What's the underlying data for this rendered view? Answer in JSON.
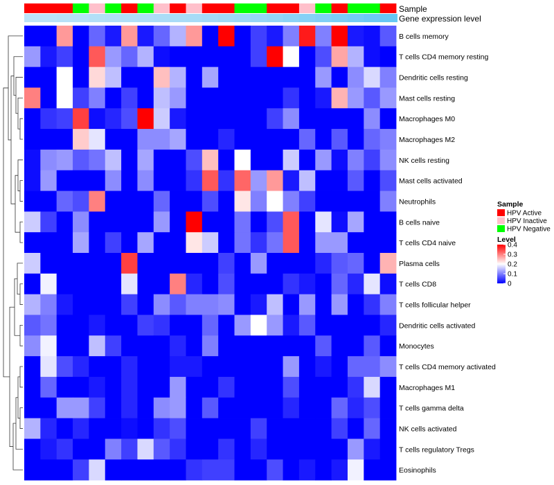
{
  "chart_data": {
    "type": "heatmap",
    "title": "",
    "xlabel": "",
    "ylabel": "",
    "annotation_tracks": {
      "sample_label": "Sample",
      "gene_expression_label": "Gene expression level",
      "sample_groups": [
        "HPV Active",
        "HPV Active",
        "HPV Active",
        "HPV Negative",
        "HPV Inactive",
        "HPV Negative",
        "HPV Active",
        "HPV Negative",
        "HPV Inactive",
        "HPV Active",
        "HPV Inactive",
        "HPV Active",
        "HPV Active",
        "HPV Negative",
        "HPV Negative",
        "HPV Active",
        "HPV Active",
        "HPV Inactive",
        "HPV Negative",
        "HPV Active",
        "HPV Negative",
        "HPV Negative",
        "HPV Active"
      ],
      "gene_expression_levels": [
        0.1,
        0.12,
        0.14,
        0.16,
        0.18,
        0.2,
        0.22,
        0.24,
        0.26,
        0.28,
        0.3,
        0.34,
        0.38,
        0.42,
        0.46,
        0.5,
        0.56,
        0.62,
        0.68,
        0.74,
        0.8,
        0.86,
        0.92
      ]
    },
    "rows": [
      "B cells memory",
      "T cells CD4 memory resting",
      "Dendritic cells resting",
      "Mast cells resting",
      "Macrophages M0",
      "Macrophages M2",
      "NK cells resting",
      "Mast cells activated",
      "Neutrophils",
      "B cells naive",
      "T cells CD4 naive",
      "Plasma cells",
      "T cells CD8",
      "T cells follicular helper",
      "Dendritic cells activated",
      "Monocytes",
      "T cells CD4 memory activated",
      "Macrophages M1",
      "T cells gamma delta",
      "NK cells activated",
      "T cells regulatory  Tregs",
      "Eosinophils"
    ],
    "values": [
      [
        0,
        0,
        0.28,
        0,
        0.08,
        0.02,
        0.28,
        0.02,
        0.08,
        0.14,
        0.28,
        0,
        0.4,
        0,
        0.05,
        0.02,
        0.1,
        0.38,
        0.1,
        0.4,
        0.02,
        0.01,
        0.07
      ],
      [
        0.12,
        0.02,
        0.05,
        0,
        0.33,
        0.12,
        0.08,
        0.14,
        0.01,
        0,
        0,
        0,
        0,
        0,
        0.05,
        0.4,
        0.2,
        0,
        0.06,
        0.27,
        0.14,
        0.01,
        0
      ],
      [
        0,
        0,
        0.2,
        0,
        0.23,
        0.15,
        0,
        0,
        0.25,
        0.14,
        0,
        0.13,
        0,
        0,
        0,
        0,
        0,
        0,
        0.12,
        0,
        0.11,
        0.17,
        0.1
      ],
      [
        0.3,
        0,
        0.2,
        0.05,
        0.1,
        0,
        0.05,
        0,
        0.15,
        0.12,
        0,
        0,
        0,
        0,
        0,
        0,
        0.04,
        0,
        0.02,
        0.26,
        0.12,
        0.07,
        0.12
      ],
      [
        0,
        0.04,
        0.05,
        0.35,
        0.01,
        0.03,
        0.06,
        0.4,
        0.16,
        0.02,
        0,
        0,
        0,
        0,
        0,
        0.05,
        0.11,
        0,
        0,
        0,
        0,
        0.11,
        0
      ],
      [
        0,
        0,
        0,
        0.24,
        0.18,
        0,
        0,
        0.11,
        0.11,
        0.13,
        0,
        0,
        0.03,
        0,
        0,
        0,
        0,
        0.08,
        0,
        0.07,
        0,
        0.08,
        0.1
      ],
      [
        0.01,
        0.11,
        0.12,
        0.07,
        0.09,
        0.15,
        0,
        0.13,
        0,
        0,
        0.06,
        0.25,
        0,
        0.2,
        0,
        0,
        0.16,
        0,
        0.12,
        0.01,
        0.1,
        0.05,
        0.11
      ],
      [
        0.01,
        0.12,
        0,
        0,
        0,
        0.11,
        0,
        0.11,
        0,
        0,
        0.04,
        0.33,
        0.04,
        0.32,
        0.12,
        0.28,
        0.02,
        0.15,
        0,
        0,
        0.07,
        0,
        0.06
      ],
      [
        0,
        0,
        0.08,
        0.06,
        0.3,
        0,
        0,
        0,
        0.08,
        0,
        0,
        0.06,
        0,
        0.22,
        0.1,
        0.2,
        0.1,
        0.05,
        0,
        0,
        0,
        0,
        0.1
      ],
      [
        0.16,
        0.05,
        0,
        0.11,
        0,
        0,
        0,
        0,
        0.12,
        0,
        0.4,
        0,
        0,
        0.09,
        0,
        0.06,
        0.33,
        0,
        0.18,
        0.01,
        0.13,
        0,
        0
      ],
      [
        0,
        0,
        0,
        0.13,
        0,
        0.05,
        0,
        0.13,
        0,
        0,
        0.22,
        0.16,
        0,
        0.09,
        0.04,
        0.09,
        0.33,
        0,
        0.12,
        0.12,
        0,
        0,
        0
      ],
      [
        0.16,
        0,
        0,
        0,
        0,
        0,
        0.35,
        0,
        0,
        0,
        0,
        0,
        0.05,
        0,
        0.12,
        0,
        0,
        0,
        0.03,
        0.07,
        0.08,
        0,
        0.26
      ],
      [
        0,
        0.19,
        0,
        0,
        0,
        0,
        0.18,
        0,
        0,
        0.3,
        0.03,
        0,
        0.06,
        0,
        0,
        0,
        0.04,
        0.02,
        0,
        0.08,
        0.03,
        0.18,
        0.01
      ],
      [
        0.14,
        0.1,
        0.02,
        0,
        0,
        0,
        0.05,
        0,
        0.11,
        0.07,
        0.1,
        0.1,
        0.11,
        0,
        0.02,
        0.15,
        0,
        0.12,
        0,
        0.12,
        0,
        0.04,
        0.1
      ],
      [
        0.07,
        0.09,
        0,
        0,
        0.02,
        0,
        0,
        0.05,
        0.04,
        0,
        0,
        0.08,
        0,
        0.12,
        0.2,
        0.12,
        0.02,
        0.07,
        0,
        0,
        0,
        0,
        0.03
      ],
      [
        0.11,
        0.19,
        0,
        0,
        0.15,
        0.05,
        0,
        0,
        0,
        0.03,
        0,
        0.1,
        0,
        0,
        0,
        0,
        0,
        0,
        0.07,
        0,
        0,
        0.07,
        0
      ],
      [
        0,
        0.18,
        0.06,
        0.03,
        0,
        0,
        0.03,
        0,
        0,
        0.02,
        0.02,
        0,
        0,
        0,
        0,
        0,
        0.12,
        0,
        0.02,
        0,
        0.08,
        0.08,
        0.11
      ],
      [
        0,
        0.08,
        0,
        0,
        0.02,
        0,
        0.03,
        0,
        0,
        0.12,
        0,
        0,
        0.04,
        0,
        0,
        0,
        0.06,
        0,
        0,
        0,
        0.04,
        0.17,
        0
      ],
      [
        0,
        0,
        0.12,
        0.12,
        0.05,
        0,
        0.03,
        0,
        0.11,
        0.12,
        0,
        0.07,
        0,
        0,
        0,
        0,
        0.03,
        0,
        0,
        0.08,
        0.03,
        0.06,
        0
      ],
      [
        0.14,
        0.03,
        0,
        0.03,
        0,
        0,
        0.01,
        0,
        0.04,
        0.06,
        0,
        0,
        0,
        0,
        0.05,
        0,
        0,
        0,
        0,
        0.05,
        0,
        0.08,
        0
      ],
      [
        0,
        0.02,
        0.04,
        0,
        0,
        0.1,
        0.05,
        0.17,
        0.07,
        0.04,
        0,
        0,
        0.04,
        0,
        0.03,
        0,
        0,
        0,
        0,
        0,
        0.12,
        0.02,
        0
      ],
      [
        0,
        0,
        0,
        0.05,
        0.17,
        0,
        0,
        0,
        0,
        0,
        0.04,
        0.05,
        0.05,
        0,
        0,
        0.06,
        0,
        0.02,
        0,
        0.02,
        0.19,
        0,
        0
      ]
    ],
    "legend": {
      "sample": {
        "title": "Sample",
        "placement": "right",
        "entries": [
          {
            "label": "HPV Active",
            "color": "#ff0000"
          },
          {
            "label": "HPV Inactive",
            "color": "#ffc0cb"
          },
          {
            "label": "HPV Negative",
            "color": "#00ff00"
          }
        ]
      },
      "level": {
        "title": "Level",
        "range": [
          0,
          0.4
        ],
        "ticks": [
          {
            "value": 0.4,
            "label": "0.4"
          },
          {
            "value": 0.3,
            "label": "0.3"
          },
          {
            "value": 0.2,
            "label": "0.2"
          },
          {
            "value": 0.1,
            "label": "0.1"
          },
          {
            "value": 0,
            "label": "0"
          }
        ],
        "colors": {
          "low": "#0000ff",
          "mid": "#ffffff",
          "high": "#ff0000"
        }
      }
    },
    "gene_expression_colors": {
      "low": "#c6e6f8",
      "high": "#5fc4f4"
    }
  }
}
